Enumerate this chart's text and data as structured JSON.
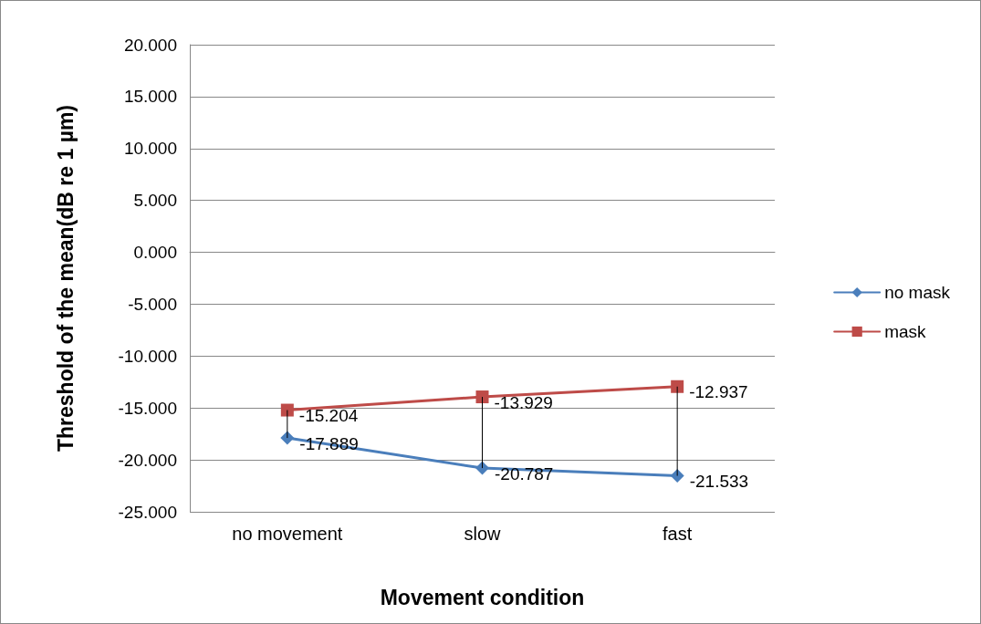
{
  "chart_data": {
    "type": "line",
    "xlabel": "Movement condition",
    "ylabel": "Threshold of the mean(dB re 1 µm)",
    "categories": [
      "no movement",
      "slow",
      "fast"
    ],
    "series": [
      {
        "name": "no mask",
        "color": "#4a7ebb",
        "marker": "diamond",
        "values": [
          -17.889,
          -20.787,
          -21.533
        ]
      },
      {
        "name": "mask",
        "color": "#be4b48",
        "marker": "square",
        "values": [
          -15.204,
          -13.929,
          -12.937
        ],
        "errors": [
          [
            -17.889,
            -15.204
          ],
          [
            -20.787,
            -13.929
          ],
          [
            -21.533,
            -12.937
          ]
        ]
      }
    ],
    "ylim": [
      -25,
      20
    ],
    "yticks": [
      {
        "value": -25,
        "label": "-25.000"
      },
      {
        "value": -20,
        "label": "-20.000"
      },
      {
        "value": -15,
        "label": "-15.000"
      },
      {
        "value": -10,
        "label": "-10.000"
      },
      {
        "value": -5,
        "label": "-5.000"
      },
      {
        "value": 0,
        "label": "0.000"
      },
      {
        "value": 5,
        "label": "5.000"
      },
      {
        "value": 10,
        "label": "10.000"
      },
      {
        "value": 15,
        "label": "15.000"
      },
      {
        "value": 20,
        "label": "20.000"
      }
    ],
    "grid": "y",
    "legend": "right",
    "data_labels": true,
    "line_style": "solid"
  }
}
